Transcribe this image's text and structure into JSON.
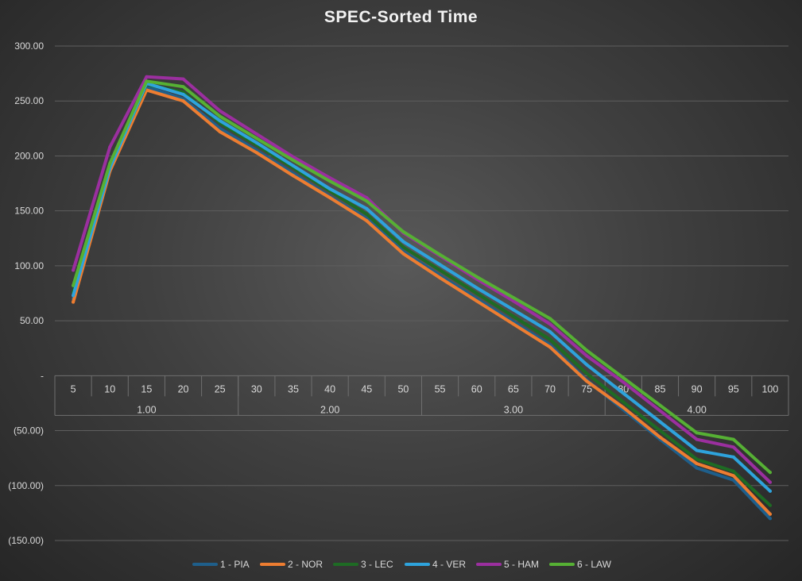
{
  "chart_data": {
    "type": "line",
    "title": "SPEC-Sorted Time",
    "x": [
      "5",
      "10",
      "15",
      "20",
      "25",
      "30",
      "35",
      "40",
      "45",
      "50",
      "55",
      "60",
      "65",
      "70",
      "75",
      "80",
      "85",
      "90",
      "95",
      "100"
    ],
    "groups": [
      {
        "label": "1.00",
        "span": 5
      },
      {
        "label": "2.00",
        "span": 5
      },
      {
        "label": "3.00",
        "span": 5
      },
      {
        "label": "4.00",
        "span": 5
      }
    ],
    "ylim": [
      -150,
      300
    ],
    "yticks": [
      300,
      250,
      200,
      150,
      100,
      50,
      0,
      -50,
      -100,
      -150
    ],
    "ytick_labels": [
      "300.00",
      "250.00",
      "200.00",
      "150.00",
      "100.00",
      "50.00",
      "-",
      "(50.00)",
      "(100.00)",
      "(150.00)"
    ],
    "grid": true,
    "legend": "bottom",
    "series": [
      {
        "name": "1 - PIA",
        "color": "#1f5f8b",
        "values": [
          70,
          188,
          263,
          252,
          225,
          205,
          184,
          163,
          143,
          113,
          91,
          70,
          49,
          28,
          -4,
          -31,
          -58,
          -84,
          -95,
          -130
        ]
      },
      {
        "name": "2 - NOR",
        "color": "#ed7d31",
        "values": [
          67,
          186,
          260,
          250,
          222,
          203,
          182,
          162,
          141,
          111,
          89,
          68,
          47,
          26,
          -5,
          -29,
          -56,
          -80,
          -91,
          -126
        ]
      },
      {
        "name": "3 - LEC",
        "color": "#1e6b24",
        "values": [
          76,
          190,
          265,
          258,
          230,
          210,
          189,
          168,
          147,
          117,
          96,
          75,
          54,
          33,
          2,
          -24,
          -50,
          -76,
          -87,
          -118
        ]
      },
      {
        "name": "4 - VER",
        "color": "#2ea3dc",
        "values": [
          73,
          189,
          266,
          256,
          232,
          212,
          191,
          170,
          152,
          122,
          101,
          80,
          60,
          40,
          10,
          -16,
          -42,
          -68,
          -74,
          -105
        ]
      },
      {
        "name": "5 - HAM",
        "color": "#9b2f9f",
        "values": [
          96,
          208,
          272,
          270,
          241,
          220,
          199,
          180,
          162,
          130,
          109,
          88,
          68,
          47,
          18,
          -6,
          -32,
          -58,
          -65,
          -97
        ]
      },
      {
        "name": "6 - LAW",
        "color": "#56b034",
        "values": [
          82,
          193,
          268,
          263,
          236,
          216,
          196,
          177,
          159,
          131,
          110,
          90,
          71,
          52,
          23,
          -2,
          -27,
          -52,
          -58,
          -88
        ]
      }
    ]
  }
}
